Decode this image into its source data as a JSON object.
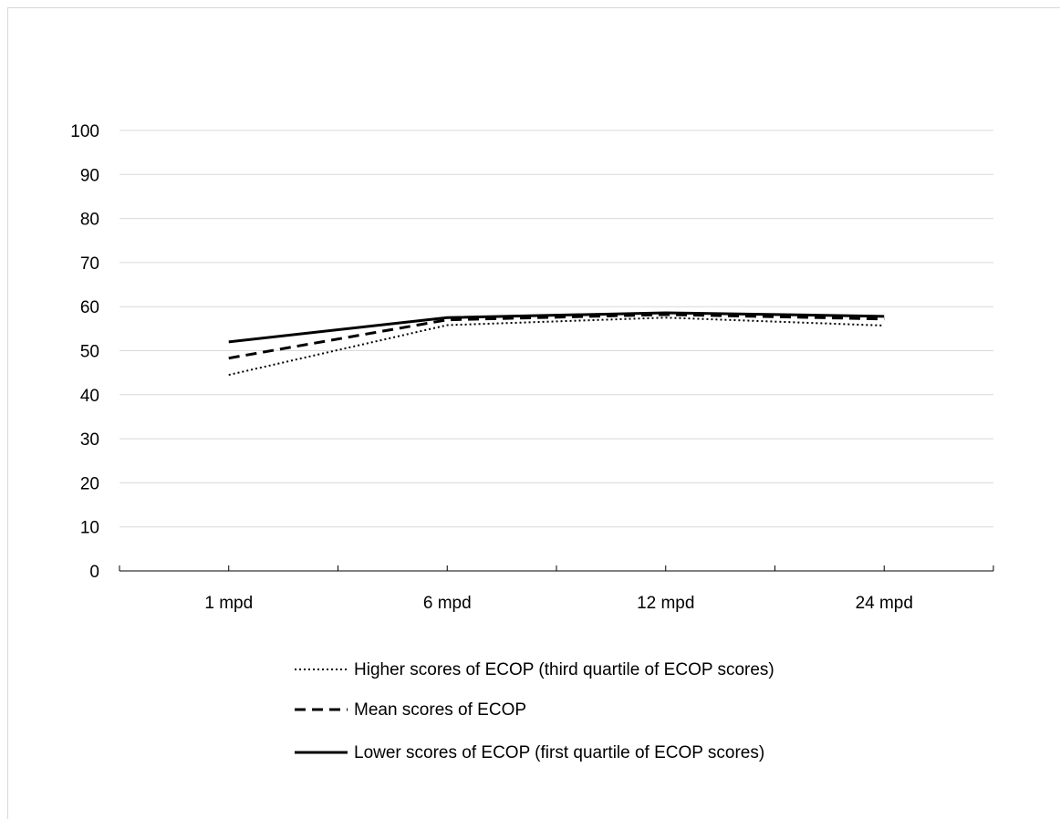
{
  "chart_data": {
    "type": "line",
    "title": "",
    "xlabel": "",
    "ylabel": "",
    "categories": [
      "1 mpd",
      "6 mpd",
      "12 mpd",
      "24 mpd"
    ],
    "ylim": [
      0,
      100
    ],
    "yticks": [
      0,
      10,
      20,
      30,
      40,
      50,
      60,
      70,
      80,
      90,
      100
    ],
    "grid": true,
    "legend_position": "bottom",
    "series": [
      {
        "name": "Higher scores of ECOP (third quartile of ECOP scores)",
        "values": [
          44.5,
          55.8,
          57.5,
          55.7
        ],
        "style": "dotted",
        "color": "#000000"
      },
      {
        "name": "Mean scores of ECOP",
        "values": [
          48.3,
          57.0,
          58.2,
          57.2
        ],
        "style": "dashed",
        "color": "#000000"
      },
      {
        "name": "Lower scores of ECOP (first quartile of ECOP scores)",
        "values": [
          52.0,
          57.5,
          58.6,
          57.8
        ],
        "style": "solid",
        "color": "#000000"
      }
    ],
    "gridline_color": "#d9d9d9"
  }
}
